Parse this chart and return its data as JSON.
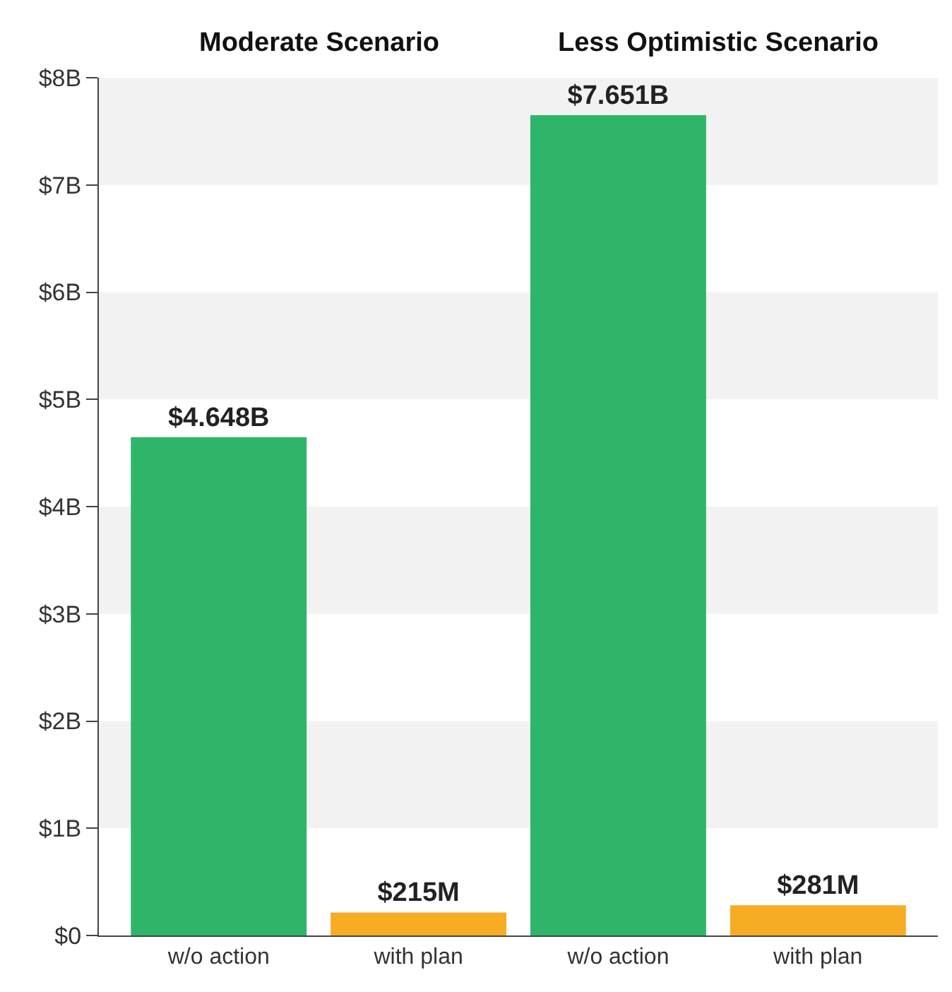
{
  "chart_data": {
    "type": "bar",
    "categories": [
      "w/o action",
      "with plan",
      "w/o action",
      "with plan"
    ],
    "values": [
      4648000000,
      215000000,
      7651000000,
      281000000
    ],
    "colors": [
      "#2fb56a",
      "#f6ad24",
      "#2fb56a",
      "#f6ad24"
    ],
    "value_labels": [
      "$4.648B",
      "$215M",
      "$7.651B",
      "$281M"
    ],
    "annotations": [
      "Moderate Scenario",
      "Less Optimistic Scenario"
    ],
    "ylim": [
      0,
      8000000000
    ],
    "yticks": [
      {
        "value": 0,
        "label": "$0"
      },
      {
        "value": 1000000000,
        "label": "$1B"
      },
      {
        "value": 2000000000,
        "label": "$2B"
      },
      {
        "value": 3000000000,
        "label": "$3B"
      },
      {
        "value": 4000000000,
        "label": "$4B"
      },
      {
        "value": 5000000000,
        "label": "$5B"
      },
      {
        "value": 6000000000,
        "label": "$6B"
      },
      {
        "value": 7000000000,
        "label": "$7B"
      },
      {
        "value": 8000000000,
        "label": "$8B"
      }
    ],
    "bands": [
      {
        "axis": "y",
        "from": 1000000000,
        "to": 2000000000,
        "color": "#f2f2f2"
      },
      {
        "axis": "y",
        "from": 3000000000,
        "to": 4000000000,
        "color": "#f2f2f2"
      },
      {
        "axis": "y",
        "from": 5000000000,
        "to": 6000000000,
        "color": "#f2f2f2"
      },
      {
        "axis": "y",
        "from": 7000000000,
        "to": 8000000000,
        "color": "#f2f2f2"
      }
    ],
    "grid": false,
    "legend": false
  }
}
